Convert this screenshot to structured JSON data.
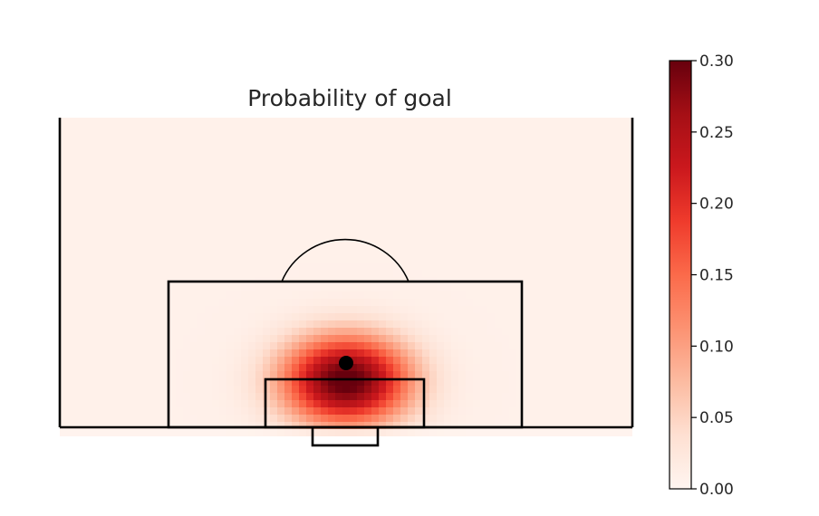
{
  "chart_data": {
    "type": "heatmap",
    "title": "Probability of goal",
    "xlabel": "",
    "ylabel": "",
    "colormap": "Reds",
    "colormap_stops": [
      "#fff5f0",
      "#fee0d2",
      "#fcbba1",
      "#fc9272",
      "#fb6a4a",
      "#ef3b2c",
      "#cb181d",
      "#a50f15",
      "#67000d"
    ],
    "colorbar": {
      "orientation": "vertical",
      "vmin": 0.0,
      "vmax": 0.3,
      "ticks": [
        0.0,
        0.05,
        0.1,
        0.15,
        0.2,
        0.25,
        0.3
      ],
      "tick_labels": [
        "0.00",
        "0.05",
        "0.10",
        "0.15",
        "0.20",
        "0.25",
        "0.30"
      ]
    },
    "pitch_dimensions_m": {
      "width": 68,
      "length": 53
    },
    "value_model": {
      "peak_value": 0.3,
      "peak_location_m": [
        34,
        8
      ],
      "spread_m": 7.5,
      "ambient_value": 0.008
    },
    "markers": [
      {
        "name": "penalty-spot",
        "x": 34,
        "y": 11
      }
    ],
    "grid": false,
    "legend": "none"
  }
}
